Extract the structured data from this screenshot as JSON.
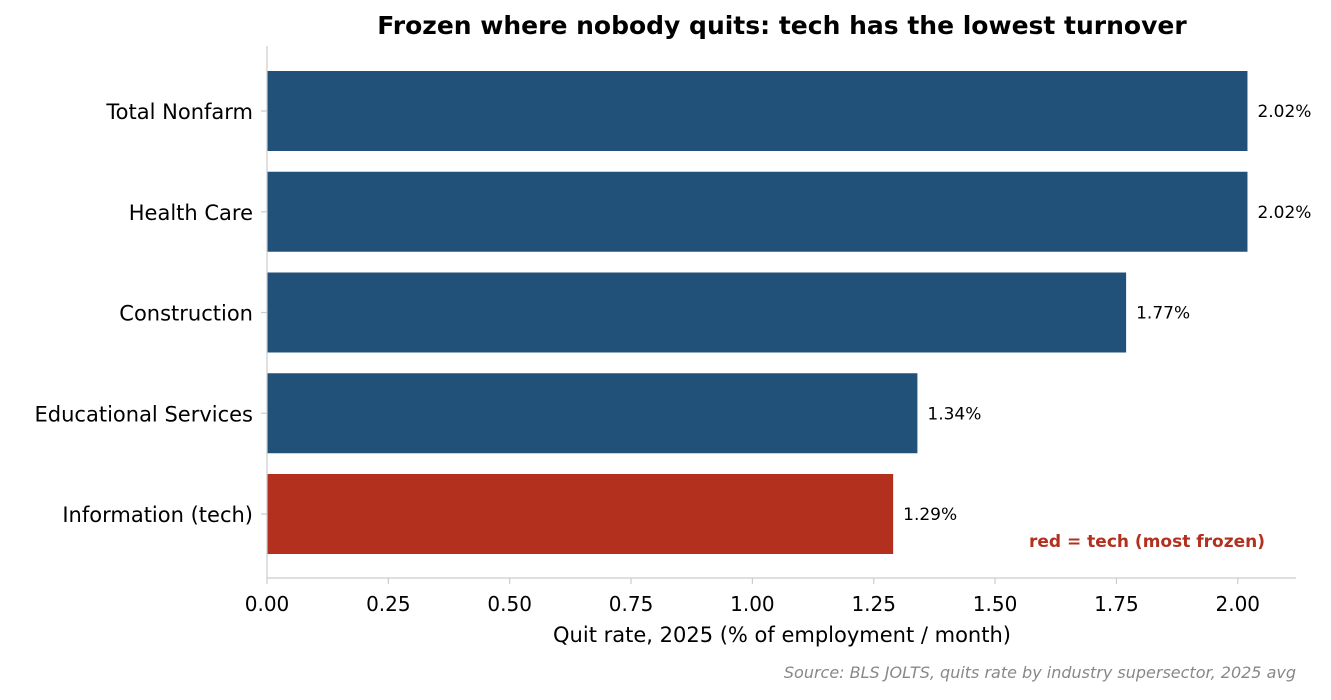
{
  "chart_data": {
    "type": "bar",
    "orientation": "horizontal",
    "title": "Frozen where nobody quits: tech has the lowest turnover",
    "xlabel": "Quit rate, 2025 (% of employment / month)",
    "ylabel": "",
    "categories": [
      "Total Nonfarm",
      "Health Care",
      "Construction",
      "Educational Services",
      "Information (tech)"
    ],
    "values": [
      2.02,
      2.02,
      1.77,
      1.34,
      1.29
    ],
    "value_labels": [
      "2.02%",
      "2.02%",
      "1.77%",
      "1.34%",
      "1.29%"
    ],
    "highlight_index": 4,
    "xlim": [
      0,
      2.12
    ],
    "xticks": [
      0.0,
      0.25,
      0.5,
      0.75,
      1.0,
      1.25,
      1.5,
      1.75,
      2.0
    ],
    "xtick_labels": [
      "0.00",
      "0.25",
      "0.50",
      "0.75",
      "1.00",
      "1.25",
      "1.50",
      "1.75",
      "2.00"
    ],
    "grid": false,
    "annotation": "red = tech (most frozen)",
    "source": "Source: BLS JOLTS, quits rate by industry supersector, 2025 avg",
    "colors": {
      "bar": "#215078",
      "highlight": "#b3301f",
      "annotation": "#b3301f",
      "text": "#000000",
      "source": "#888888",
      "axis": "#cccccc"
    }
  }
}
